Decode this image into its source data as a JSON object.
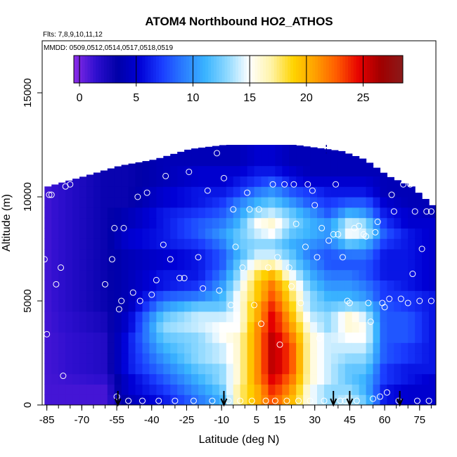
{
  "chart_data": {
    "type": "heatmap",
    "title": "ATOM4 Northbound HO2_ATHOS",
    "flights_label": "Flts: 7,8,9,10,11,12",
    "dates_label": "MMDD: 0509,0512,0514,0517,0518,0519",
    "xlabel": "Latitude (deg N)",
    "ylabel": "Altitude (m)",
    "xlim": [
      -87,
      82
    ],
    "ylim": [
      0,
      17500
    ],
    "x_ticks": [
      -85,
      -70,
      -55,
      -40,
      -25,
      -10,
      5,
      15,
      30,
      45,
      60,
      75
    ],
    "y_ticks": [
      0,
      5000,
      10000,
      15000
    ],
    "colorbar": {
      "min": -0.5,
      "max": 28.5,
      "ticks": [
        0,
        5,
        10,
        15,
        20,
        25
      ],
      "colors": [
        "#8c2be8",
        "#2f0fcf",
        "#0000a8",
        "#0000d6",
        "#1a3cff",
        "#2a7dff",
        "#3ab4ff",
        "#8fd9ff",
        "#ffffff",
        "#fff3a8",
        "#ffd400",
        "#ffa000",
        "#ff5a00",
        "#e60000",
        "#a00000",
        "#8a1a1a"
      ]
    },
    "lat_bins": [
      -86,
      -83,
      -80,
      -77,
      -74,
      -71,
      -68,
      -65,
      -62,
      -59,
      -56,
      -53,
      -50,
      -47,
      -44,
      -41,
      -38,
      -35,
      -32,
      -29,
      -26,
      -23,
      -20,
      -17,
      -14,
      -11,
      -8,
      -5,
      -2,
      1,
      4,
      7,
      10,
      13,
      16,
      19,
      22,
      25,
      28,
      31,
      34,
      37,
      40,
      43,
      46,
      49,
      52,
      55,
      58,
      61,
      64,
      67,
      70,
      73,
      76,
      79
    ],
    "alt_bins": [
      0,
      500,
      1000,
      1500,
      2000,
      2500,
      3000,
      3500,
      4000,
      4500,
      5000,
      5500,
      6000,
      6500,
      7000,
      7500,
      8000,
      8500,
      9000,
      9500,
      10000,
      10500,
      11000,
      11500,
      12000,
      12500
    ],
    "profiles": [
      {
        "lat": -86,
        "values": [
          1,
          1,
          1,
          1,
          1,
          1,
          1,
          1,
          1,
          1,
          1,
          1,
          1,
          1,
          1,
          1,
          1,
          1,
          1,
          1,
          1,
          1
        ]
      },
      {
        "lat": -60,
        "values": [
          1,
          1,
          1,
          1.5,
          2,
          2,
          2,
          2,
          2.5,
          2.5,
          3,
          3,
          3,
          3,
          3,
          3,
          3,
          3,
          3,
          3,
          3,
          3,
          3
        ]
      },
      {
        "lat": -50,
        "values": [
          4,
          4,
          5,
          5,
          6,
          6,
          6,
          6,
          5,
          5,
          4,
          4,
          4,
          4,
          4,
          4,
          5,
          5,
          4,
          4,
          3,
          3,
          3,
          3
        ]
      },
      {
        "lat": -35,
        "values": [
          6,
          6,
          7,
          8,
          9,
          10,
          11,
          12,
          13,
          12,
          10,
          8,
          6,
          6,
          5,
          5,
          6,
          6,
          6,
          6,
          5,
          5,
          4,
          4,
          4
        ]
      },
      {
        "lat": -20,
        "values": [
          8,
          9,
          10,
          11,
          12,
          13,
          13,
          13,
          14,
          14,
          12,
          9,
          7,
          6,
          6,
          6,
          7,
          8,
          8,
          7,
          6,
          6,
          5,
          5,
          4
        ]
      },
      {
        "lat": -10,
        "values": [
          10,
          11,
          12,
          13,
          13,
          14,
          14,
          15,
          15,
          14,
          12,
          11,
          10,
          9,
          8,
          8,
          9,
          10,
          9,
          8,
          7,
          6,
          5,
          5,
          4
        ]
      },
      {
        "lat": -3,
        "values": [
          17,
          17,
          17,
          16,
          16,
          16,
          16,
          16,
          15,
          15,
          15,
          15,
          14,
          13,
          12,
          11,
          12,
          12,
          11,
          10,
          9,
          7,
          6,
          5,
          4
        ]
      },
      {
        "lat": 5,
        "values": [
          20,
          20,
          20,
          21,
          21,
          21,
          21,
          21,
          21,
          20,
          20,
          19,
          19,
          18,
          16,
          14,
          13,
          14,
          15,
          13,
          11,
          9,
          7,
          6,
          5
        ]
      },
      {
        "lat": 12,
        "values": [
          23,
          23,
          24,
          25,
          26,
          26,
          26,
          26,
          25,
          25,
          24,
          23,
          22,
          20,
          17,
          14,
          13,
          15,
          16,
          14,
          12,
          10,
          8,
          6,
          5
        ]
      },
      {
        "lat": 20,
        "values": [
          20,
          20,
          21,
          22,
          23,
          23,
          23,
          22,
          21,
          20,
          19,
          18,
          17,
          15,
          13,
          12,
          11,
          12,
          13,
          12,
          10,
          8,
          6,
          5,
          4
        ]
      },
      {
        "lat": 28,
        "values": [
          15,
          15,
          15,
          16,
          16,
          16,
          16,
          16,
          15,
          14,
          13,
          13,
          12,
          11,
          10,
          9,
          10,
          11,
          11,
          10,
          8,
          7,
          5,
          4,
          4
        ]
      },
      {
        "lat": 36,
        "values": [
          13,
          13,
          13,
          14,
          14,
          14,
          14,
          14,
          13,
          13,
          12,
          11,
          10,
          9,
          8,
          8,
          9,
          10,
          10,
          8,
          7,
          6,
          5,
          4,
          4
        ]
      },
      {
        "lat": 45,
        "values": [
          15,
          14,
          13,
          12,
          12,
          13,
          14,
          15,
          16,
          16,
          13,
          11,
          10,
          9,
          8,
          9,
          12,
          15,
          14,
          11,
          8,
          6,
          5,
          4,
          4
        ]
      },
      {
        "lat": 52,
        "values": [
          13,
          12,
          11,
          11,
          12,
          13,
          14,
          15,
          15,
          14,
          12,
          10,
          9,
          8,
          8,
          9,
          11,
          14,
          13,
          10,
          8,
          6,
          5,
          4
        ]
      },
      {
        "lat": 60,
        "values": [
          6,
          6,
          6,
          7,
          7,
          8,
          8,
          8,
          8,
          8,
          8,
          7,
          7,
          6,
          6,
          6,
          7,
          8,
          7,
          6,
          5,
          4,
          4
        ]
      },
      {
        "lat": 70,
        "values": [
          5,
          5,
          5,
          6,
          6,
          7,
          7,
          8,
          8,
          8,
          7,
          7,
          6,
          6,
          6,
          6,
          6,
          6,
          5,
          5,
          4,
          4
        ]
      },
      {
        "lat": 80,
        "values": [
          5,
          5,
          5,
          5,
          6,
          6,
          6,
          6,
          6,
          6,
          6,
          6,
          5,
          5,
          5,
          5,
          5,
          5,
          5,
          4
        ]
      }
    ],
    "top_altitude_profile": [
      {
        "lat": -86,
        "alt": 10500
      },
      {
        "lat": -70,
        "alt": 11000
      },
      {
        "lat": -55,
        "alt": 11500
      },
      {
        "lat": -40,
        "alt": 11800
      },
      {
        "lat": -25,
        "alt": 12300
      },
      {
        "lat": -10,
        "alt": 12500
      },
      {
        "lat": 20,
        "alt": 12500
      },
      {
        "lat": 40,
        "alt": 12200
      },
      {
        "lat": 50,
        "alt": 11800
      },
      {
        "lat": 60,
        "alt": 11000
      },
      {
        "lat": 70,
        "alt": 10500
      },
      {
        "lat": 80,
        "alt": 9500
      }
    ],
    "sample_points": [
      [
        -86,
        7000
      ],
      [
        -85,
        3400
      ],
      [
        -84,
        10100
      ],
      [
        -83,
        10100
      ],
      [
        -81,
        5800
      ],
      [
        -79,
        6600
      ],
      [
        -78,
        1400
      ],
      [
        -77,
        10500
      ],
      [
        -75,
        10600
      ],
      [
        -73,
        11300
      ],
      [
        -71,
        11400
      ],
      [
        -69,
        11500
      ],
      [
        -66,
        11600
      ],
      [
        -60,
        5800
      ],
      [
        -57,
        7000
      ],
      [
        -56,
        8500
      ],
      [
        -55,
        400
      ],
      [
        -54,
        4600
      ],
      [
        -53,
        5000
      ],
      [
        -52,
        8500
      ],
      [
        -50,
        200
      ],
      [
        -48,
        5400
      ],
      [
        -46,
        10000
      ],
      [
        -45,
        5000
      ],
      [
        -44,
        200
      ],
      [
        -42,
        10200
      ],
      [
        -40,
        5300
      ],
      [
        -38,
        6000
      ],
      [
        -37,
        200
      ],
      [
        -35,
        7700
      ],
      [
        -34,
        11000
      ],
      [
        -32,
        7000
      ],
      [
        -30,
        200
      ],
      [
        -28,
        6100
      ],
      [
        -26,
        6100
      ],
      [
        -24,
        11200
      ],
      [
        -22,
        200
      ],
      [
        -20,
        7100
      ],
      [
        -18,
        5600
      ],
      [
        -16,
        10300
      ],
      [
        -14,
        200
      ],
      [
        -12,
        12100
      ],
      [
        -11,
        5500
      ],
      [
        -9,
        10900
      ],
      [
        -7,
        200
      ],
      [
        -6,
        4800
      ],
      [
        -5,
        9400
      ],
      [
        -4,
        7600
      ],
      [
        -2,
        200
      ],
      [
        -1,
        6600
      ],
      [
        1,
        10200
      ],
      [
        2,
        9400
      ],
      [
        3,
        200
      ],
      [
        4,
        4800
      ],
      [
        6,
        9400
      ],
      [
        7,
        3900
      ],
      [
        9,
        200
      ],
      [
        10,
        6600
      ],
      [
        12,
        10600
      ],
      [
        13,
        200
      ],
      [
        14,
        7100
      ],
      [
        15,
        2900
      ],
      [
        17,
        10600
      ],
      [
        18,
        200
      ],
      [
        19,
        6600
      ],
      [
        20,
        5700
      ],
      [
        21,
        10600
      ],
      [
        22,
        8700
      ],
      [
        23,
        200
      ],
      [
        24,
        4900
      ],
      [
        26,
        7600
      ],
      [
        27,
        10600
      ],
      [
        28,
        200
      ],
      [
        29,
        10300
      ],
      [
        30,
        9600
      ],
      [
        31,
        7100
      ],
      [
        32,
        3200
      ],
      [
        33,
        8500
      ],
      [
        34,
        200
      ],
      [
        36,
        7900
      ],
      [
        38,
        8200
      ],
      [
        39,
        10600
      ],
      [
        40,
        8200
      ],
      [
        41,
        200
      ],
      [
        42,
        7100
      ],
      [
        43,
        200
      ],
      [
        44,
        5000
      ],
      [
        45,
        4900
      ],
      [
        47,
        8500
      ],
      [
        48,
        200
      ],
      [
        49,
        8600
      ],
      [
        51,
        8200
      ],
      [
        52,
        8100
      ],
      [
        53,
        4900
      ],
      [
        54,
        4000
      ],
      [
        55,
        300
      ],
      [
        56,
        8300
      ],
      [
        57,
        8800
      ],
      [
        58,
        400
      ],
      [
        59,
        4900
      ],
      [
        60,
        4700
      ],
      [
        61,
        600
      ],
      [
        62,
        5100
      ],
      [
        63,
        10100
      ],
      [
        64,
        9300
      ],
      [
        65,
        11400
      ],
      [
        66,
        200
      ],
      [
        67,
        5100
      ],
      [
        68,
        10600
      ],
      [
        69,
        11000
      ],
      [
        70,
        4900
      ],
      [
        71,
        10600
      ],
      [
        72,
        6300
      ],
      [
        73,
        9300
      ],
      [
        74,
        200
      ],
      [
        75,
        5000
      ],
      [
        76,
        7500
      ],
      [
        77,
        10300
      ],
      [
        78,
        9300
      ],
      [
        79,
        200
      ],
      [
        80,
        5000
      ],
      [
        80,
        9300
      ]
    ],
    "flight_arrows_lat": [
      -54.5,
      -9,
      38,
      45,
      66.5
    ],
    "top_marker_lat": 35
  }
}
